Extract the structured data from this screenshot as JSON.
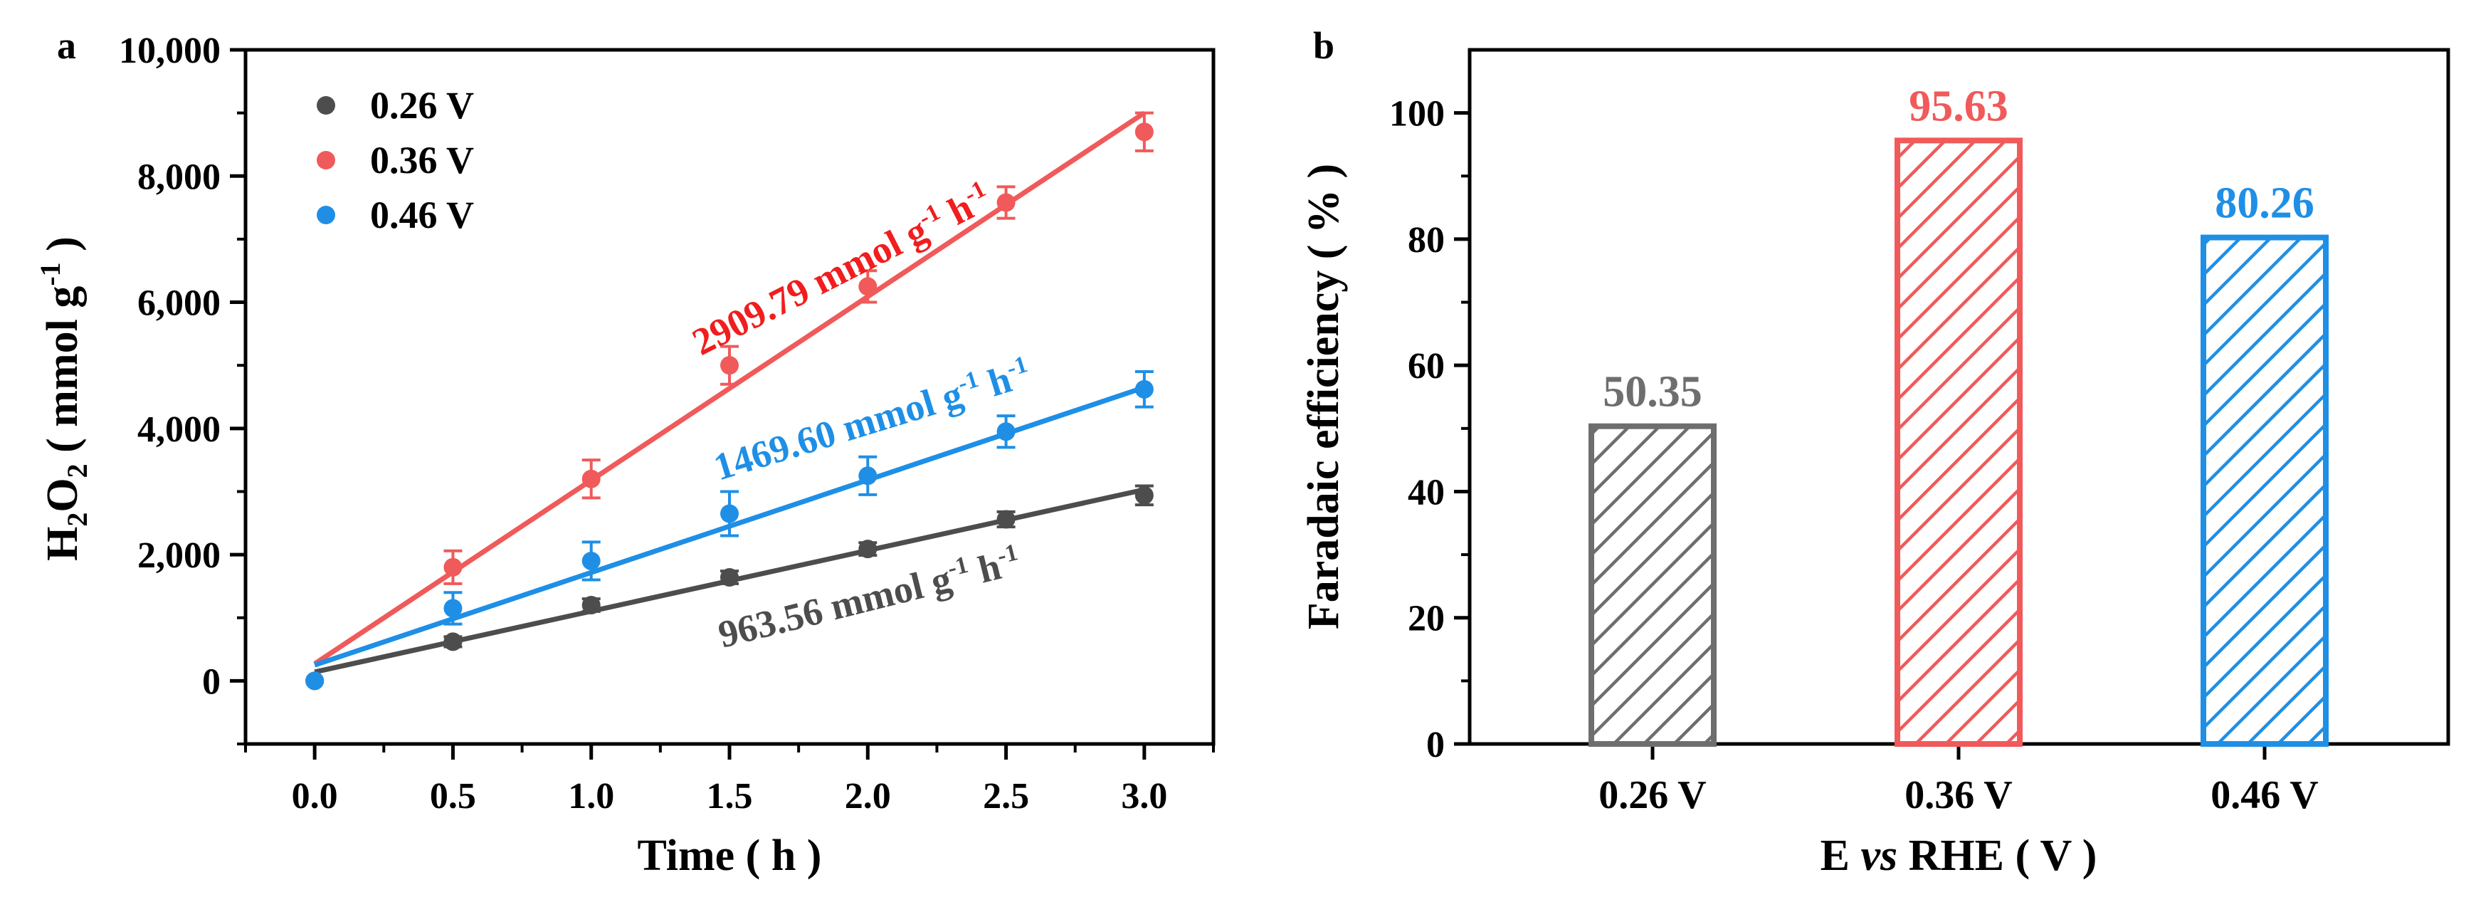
{
  "chart_data": [
    {
      "type": "scatter",
      "panel": "a",
      "title": "",
      "xlabel": "Time ( h )",
      "ylabel_main": "H",
      "ylabel_sub1": "2",
      "ylabel_mid": "O",
      "ylabel_sub2": "2",
      "ylabel_unit": " ( mmol g",
      "ylabel_unit_sup": "-1",
      "ylabel_close": " )",
      "xlim": [
        -0.25,
        3.25
      ],
      "ylim": [
        -1000,
        10000
      ],
      "xticks": [
        0,
        0.5,
        1,
        1.5,
        2,
        2.5,
        3
      ],
      "xtick_labels": [
        "0.0",
        "0.5",
        "1.0",
        "1.5",
        "2.0",
        "2.5",
        "3.0"
      ],
      "yticks": [
        0,
        2000,
        4000,
        6000,
        8000,
        10000
      ],
      "ytick_labels": [
        "0",
        "2,000",
        "4,000",
        "6,000",
        "8,000",
        "10,000"
      ],
      "legend_position": "top-left",
      "series": [
        {
          "name": "0.26 V",
          "color": "#4d4d4d",
          "x": [
            0,
            0.5,
            1,
            1.5,
            2,
            2.5,
            3
          ],
          "y": [
            0,
            620,
            1200,
            1640,
            2090,
            2560,
            2940
          ],
          "err": [
            0,
            80,
            100,
            100,
            100,
            120,
            150
          ],
          "fit": [
            140,
            3030
          ],
          "rate_value": "963.56 mmol g",
          "rate_sup1": "-1",
          "rate_mid": " h",
          "rate_sup2": "-1"
        },
        {
          "name": "0.36 V",
          "color": "#f05a5a",
          "x": [
            0,
            0.5,
            1,
            1.5,
            2,
            2.5,
            3
          ],
          "y": [
            0,
            1800,
            3200,
            5000,
            6250,
            7580,
            8700
          ],
          "err": [
            0,
            260,
            300,
            300,
            250,
            250,
            300
          ],
          "fit": [
            270,
            9000
          ],
          "rate_value": "2909.79 mmol g",
          "rate_sup1": "-1",
          "rate_mid": " h",
          "rate_sup2": "-1"
        },
        {
          "name": "0.46 V",
          "color": "#1f8fe6",
          "x": [
            0,
            0.5,
            1,
            1.5,
            2,
            2.5,
            3
          ],
          "y": [
            0,
            1150,
            1900,
            2650,
            3250,
            3950,
            4620
          ],
          "err": [
            0,
            250,
            300,
            350,
            300,
            250,
            280
          ],
          "fit": [
            250,
            4650
          ],
          "rate_value": "1469.60 mmol g",
          "rate_sup1": "-1",
          "rate_mid": " h",
          "rate_sup2": "-1"
        }
      ]
    },
    {
      "type": "bar",
      "panel": "b",
      "title": "",
      "xlabel_pre": "E ",
      "xlabel_italic": "vs",
      "xlabel_post": " RHE ( V )",
      "ylabel": "Faradaic efficiency ( % )",
      "ylim": [
        0,
        110
      ],
      "yticks": [
        0,
        20,
        40,
        60,
        80,
        100
      ],
      "ytick_labels": [
        "0",
        "20",
        "40",
        "60",
        "80",
        "100"
      ],
      "categories": [
        "0.26 V",
        "0.36 V",
        "0.46 V"
      ],
      "values": [
        50.35,
        95.63,
        80.26
      ],
      "value_labels": [
        "50.35",
        "95.63",
        "80.26"
      ],
      "colors": [
        "#6e6e6e",
        "#f05a5a",
        "#1f8fe6"
      ],
      "pattern": "diagonal-hatch"
    }
  ]
}
